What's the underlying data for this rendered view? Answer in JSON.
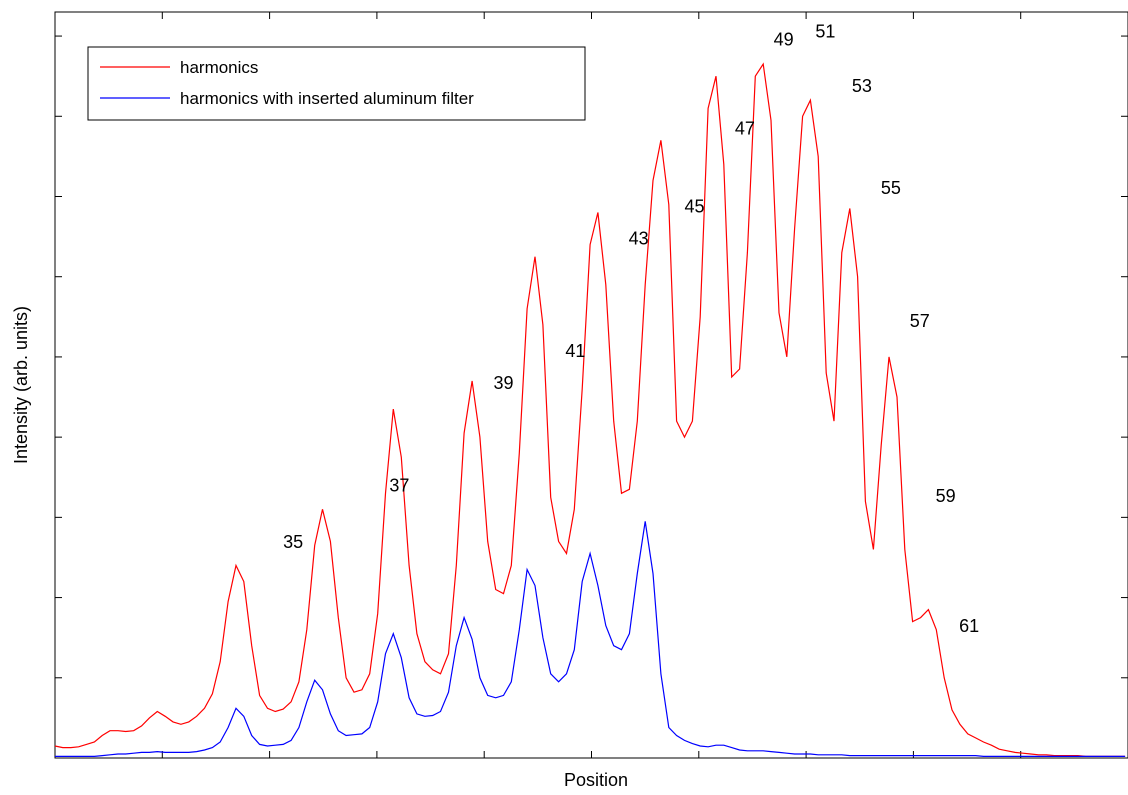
{
  "chart_data": {
    "type": "line",
    "title": "",
    "xlabel": "Position",
    "ylabel": "Intensity (arb. units)",
    "xlim": [
      0,
      10
    ],
    "ylim": [
      0,
      9.3
    ],
    "grid": false,
    "legend_position": "top-left",
    "x": [
      0.0,
      0.073,
      0.147,
      0.22,
      0.293,
      0.367,
      0.44,
      0.513,
      0.587,
      0.66,
      0.733,
      0.807,
      0.88,
      0.953,
      1.027,
      1.1,
      1.173,
      1.247,
      1.32,
      1.393,
      1.467,
      1.54,
      1.613,
      1.687,
      1.76,
      1.833,
      1.907,
      1.98,
      2.053,
      2.127,
      2.2,
      2.273,
      2.347,
      2.42,
      2.493,
      2.567,
      2.64,
      2.713,
      2.787,
      2.86,
      2.933,
      3.007,
      3.08,
      3.153,
      3.227,
      3.3,
      3.373,
      3.447,
      3.52,
      3.593,
      3.667,
      3.74,
      3.813,
      3.887,
      3.96,
      4.033,
      4.107,
      4.18,
      4.253,
      4.327,
      4.4,
      4.473,
      4.547,
      4.62,
      4.693,
      4.767,
      4.84,
      4.913,
      4.987,
      5.06,
      5.133,
      5.207,
      5.28,
      5.353,
      5.427,
      5.5,
      5.573,
      5.647,
      5.72,
      5.793,
      5.867,
      5.94,
      6.013,
      6.087,
      6.16,
      6.233,
      6.307,
      6.38,
      6.453,
      6.527,
      6.6,
      6.673,
      6.747,
      6.82,
      6.893,
      6.967,
      7.04,
      7.113,
      7.187,
      7.26,
      7.333,
      7.407,
      7.48,
      7.553,
      7.627,
      7.7,
      7.773,
      7.847,
      7.92,
      7.993,
      8.067,
      8.14,
      8.213,
      8.287,
      8.36,
      8.433,
      8.507,
      8.58,
      8.653,
      8.727,
      8.8,
      8.873,
      8.947,
      9.02,
      9.093,
      9.167,
      9.24,
      9.313,
      9.387,
      9.46,
      9.533,
      9.607,
      9.68,
      9.753,
      9.827,
      9.9,
      9.973
    ],
    "series": [
      {
        "name": "harmonics",
        "color": "#ff0000",
        "values": [
          0.15,
          0.13,
          0.13,
          0.14,
          0.17,
          0.2,
          0.28,
          0.34,
          0.34,
          0.33,
          0.34,
          0.4,
          0.5,
          0.58,
          0.52,
          0.45,
          0.42,
          0.45,
          0.52,
          0.62,
          0.8,
          1.2,
          1.95,
          2.4,
          2.2,
          1.4,
          0.78,
          0.62,
          0.58,
          0.61,
          0.7,
          0.95,
          1.6,
          2.65,
          3.1,
          2.7,
          1.75,
          1.0,
          0.82,
          0.85,
          1.05,
          1.8,
          3.3,
          4.35,
          3.75,
          2.4,
          1.55,
          1.2,
          1.1,
          1.05,
          1.3,
          2.4,
          4.05,
          4.7,
          4.0,
          2.7,
          2.1,
          2.05,
          2.4,
          3.8,
          5.6,
          6.25,
          5.4,
          3.25,
          2.7,
          2.55,
          3.1,
          4.6,
          6.4,
          6.8,
          5.9,
          4.2,
          3.3,
          3.35,
          4.2,
          5.9,
          7.2,
          7.7,
          6.9,
          4.2,
          4.0,
          4.2,
          5.5,
          8.1,
          8.5,
          7.4,
          4.75,
          4.85,
          6.3,
          8.5,
          8.65,
          7.95,
          5.55,
          5.0,
          6.6,
          8.0,
          8.2,
          7.5,
          4.8,
          4.2,
          6.3,
          6.85,
          6.0,
          3.2,
          2.6,
          3.9,
          5.0,
          4.5,
          2.6,
          1.7,
          1.75,
          1.85,
          1.6,
          1.0,
          0.6,
          0.42,
          0.3,
          0.25,
          0.2,
          0.16,
          0.11,
          0.09,
          0.07,
          0.06,
          0.05,
          0.04,
          0.04,
          0.03,
          0.03,
          0.03,
          0.03,
          0.02,
          0.02,
          0.02,
          0.02,
          0.02,
          0.02
        ]
      },
      {
        "name": "harmonics with inserted aluminum filter",
        "color": "#0000ff",
        "values": [
          0.02,
          0.02,
          0.02,
          0.02,
          0.02,
          0.02,
          0.03,
          0.04,
          0.05,
          0.05,
          0.06,
          0.07,
          0.07,
          0.08,
          0.07,
          0.07,
          0.07,
          0.07,
          0.08,
          0.1,
          0.13,
          0.2,
          0.38,
          0.62,
          0.52,
          0.28,
          0.17,
          0.15,
          0.16,
          0.17,
          0.22,
          0.38,
          0.7,
          0.97,
          0.85,
          0.55,
          0.34,
          0.28,
          0.29,
          0.3,
          0.38,
          0.7,
          1.3,
          1.55,
          1.25,
          0.75,
          0.55,
          0.52,
          0.53,
          0.58,
          0.82,
          1.4,
          1.75,
          1.48,
          1.0,
          0.78,
          0.75,
          0.78,
          0.95,
          1.6,
          2.35,
          2.15,
          1.5,
          1.05,
          0.95,
          1.05,
          1.35,
          2.2,
          2.55,
          2.15,
          1.65,
          1.4,
          1.35,
          1.55,
          2.3,
          2.95,
          2.3,
          1.05,
          0.38,
          0.28,
          0.22,
          0.18,
          0.15,
          0.14,
          0.16,
          0.16,
          0.13,
          0.1,
          0.09,
          0.09,
          0.09,
          0.08,
          0.07,
          0.06,
          0.05,
          0.05,
          0.05,
          0.04,
          0.04,
          0.04,
          0.04,
          0.03,
          0.03,
          0.03,
          0.03,
          0.03,
          0.03,
          0.03,
          0.03,
          0.03,
          0.03,
          0.03,
          0.03,
          0.03,
          0.03,
          0.03,
          0.03,
          0.03,
          0.02,
          0.02,
          0.02,
          0.02,
          0.02,
          0.02,
          0.02,
          0.02,
          0.02,
          0.02,
          0.02,
          0.02,
          0.02,
          0.02,
          0.02,
          0.02,
          0.02,
          0.02,
          0.02
        ]
      }
    ],
    "annotations": [
      {
        "text": "35",
        "x": 2.22,
        "y": 2.62
      },
      {
        "text": "37",
        "x": 3.21,
        "y": 3.32
      },
      {
        "text": "39",
        "x": 4.18,
        "y": 4.6
      },
      {
        "text": "41",
        "x": 4.85,
        "y": 5.0
      },
      {
        "text": "43",
        "x": 5.44,
        "y": 6.4
      },
      {
        "text": "45",
        "x": 5.96,
        "y": 6.8
      },
      {
        "text": "47",
        "x": 6.43,
        "y": 7.77
      },
      {
        "text": "49",
        "x": 6.79,
        "y": 8.88
      },
      {
        "text": "51",
        "x": 7.18,
        "y": 8.98
      },
      {
        "text": "53",
        "x": 7.52,
        "y": 8.3
      },
      {
        "text": "55",
        "x": 7.79,
        "y": 7.03
      },
      {
        "text": "57",
        "x": 8.06,
        "y": 5.37
      },
      {
        "text": "59",
        "x": 8.3,
        "y": 3.19
      },
      {
        "text": "61",
        "x": 8.52,
        "y": 1.57
      }
    ]
  }
}
